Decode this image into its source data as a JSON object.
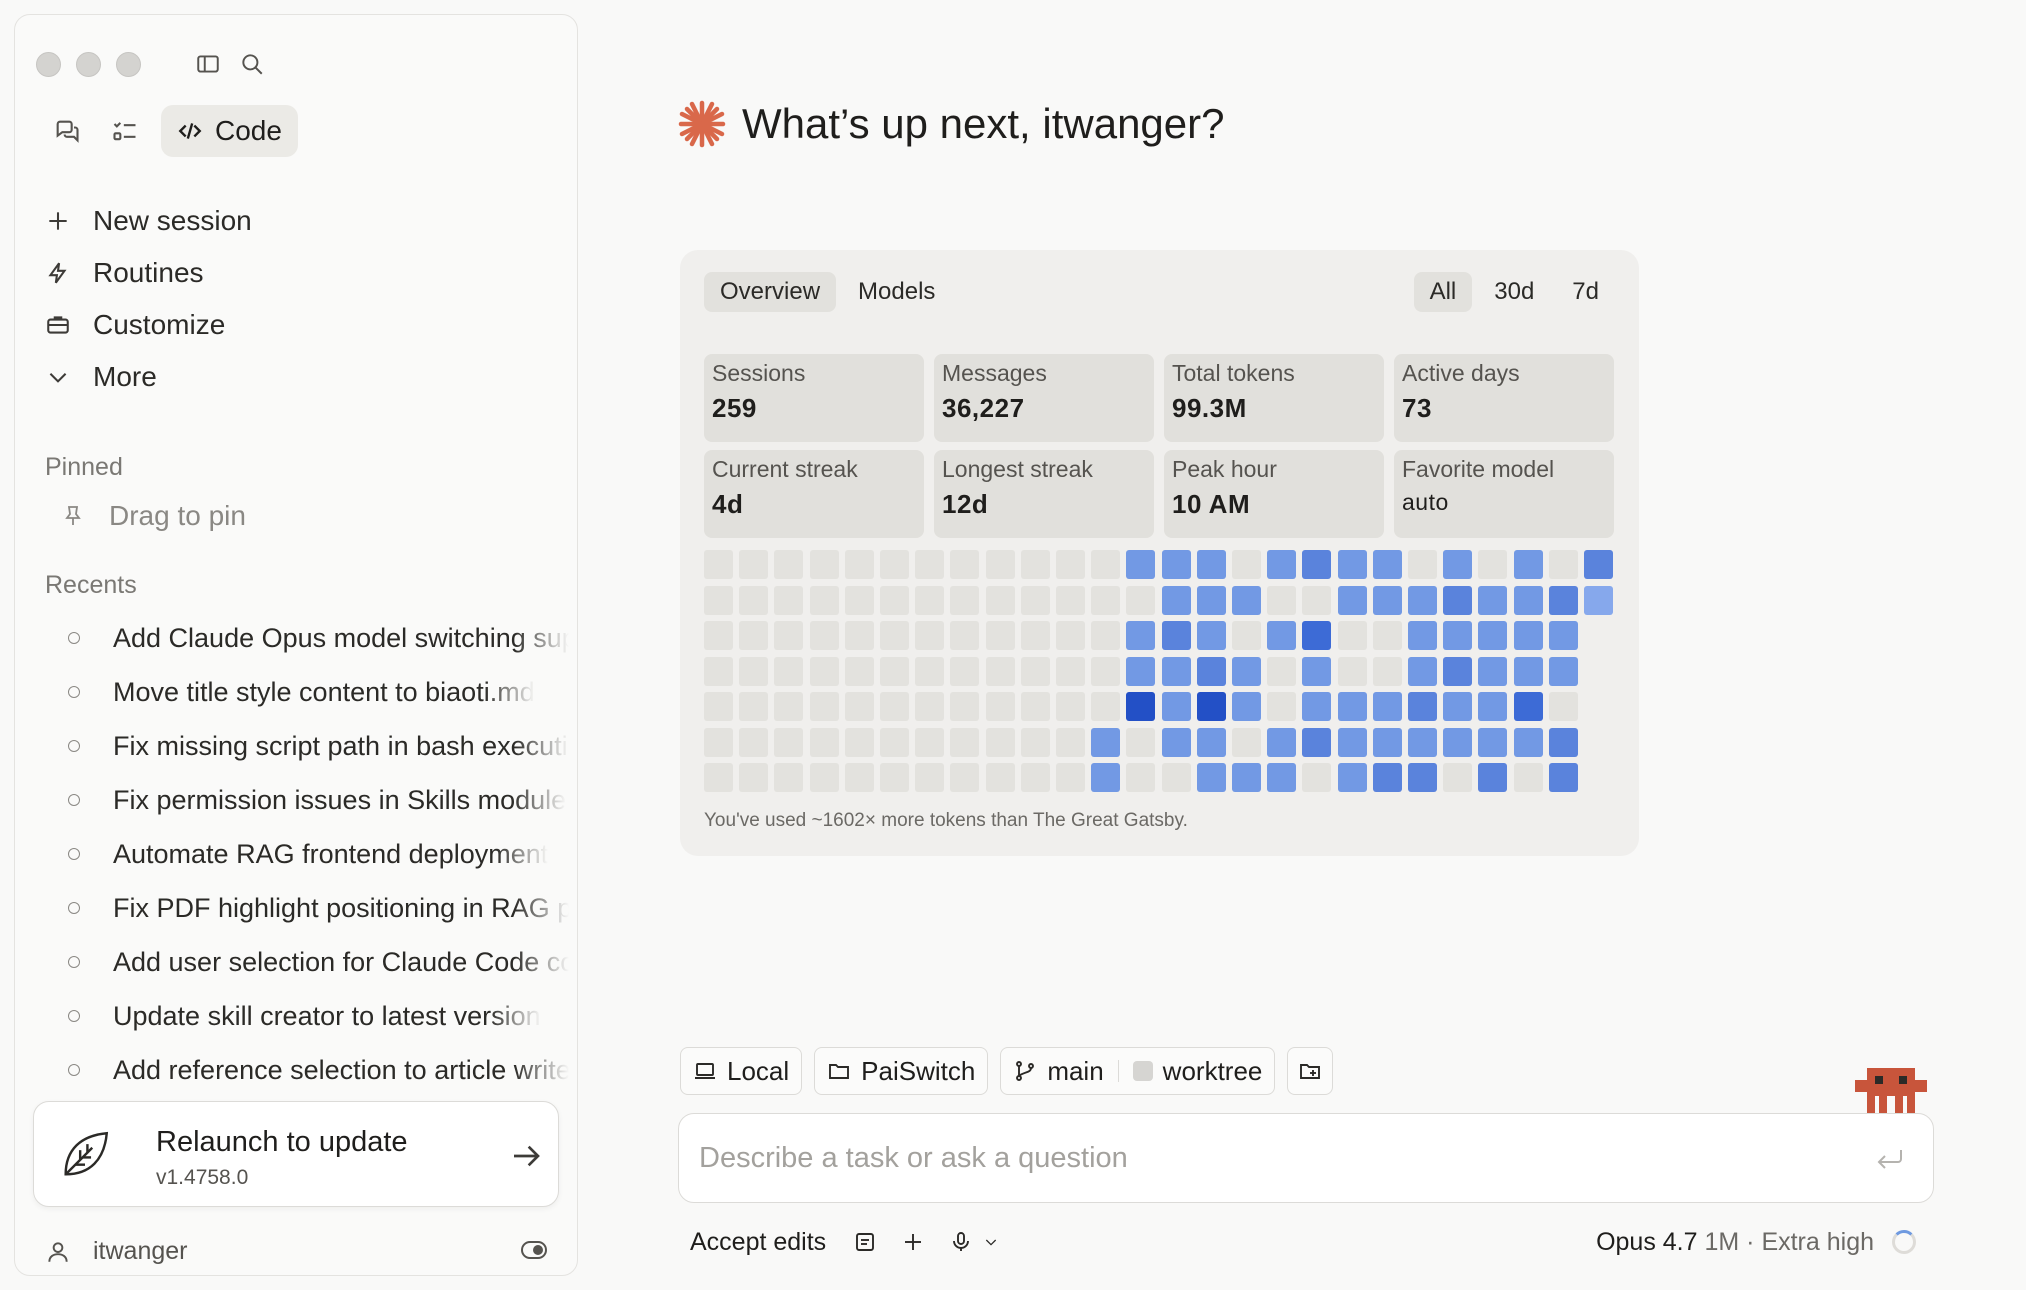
{
  "sidebar": {
    "modes": {
      "chat_icon": "chat-bubbles-icon",
      "tasks_icon": "checklist-icon",
      "code_label": "Code"
    },
    "nav": [
      {
        "label": "New session",
        "icon": "plus-icon"
      },
      {
        "label": "Routines",
        "icon": "lightning-icon"
      },
      {
        "label": "Customize",
        "icon": "briefcase-icon"
      },
      {
        "label": "More",
        "icon": "chevron-down-icon"
      }
    ],
    "pinned_label": "Pinned",
    "drag_to_pin": "Drag to pin",
    "recents_label": "Recents",
    "recents": [
      "Add Claude Opus model switching support",
      "Move title style content to biaoti.md",
      "Fix missing script path in bash execution",
      "Fix permission issues in Skills module",
      "Automate RAG frontend deployment",
      "Fix PDF highlight positioning in RAG preview",
      "Add user selection for Claude Code config",
      "Update skill creator to latest version",
      "Add reference selection to article writer"
    ],
    "update": {
      "title": "Relaunch to update",
      "version": "v1.4758.0"
    },
    "user": "itwanger"
  },
  "main": {
    "greeting": "What’s up next, itwanger?",
    "accent_color": "#d9684a",
    "stats": {
      "tabs": [
        "Overview",
        "Models"
      ],
      "ranges": [
        "All",
        "30d",
        "7d"
      ],
      "active_tab": "Overview",
      "active_range": "All",
      "cards": [
        {
          "label": "Sessions",
          "value": "259"
        },
        {
          "label": "Messages",
          "value": "36,227"
        },
        {
          "label": "Total tokens",
          "value": "99.3M"
        },
        {
          "label": "Active days",
          "value": "73"
        },
        {
          "label": "Current streak",
          "value": "4d"
        },
        {
          "label": "Longest streak",
          "value": "12d"
        },
        {
          "label": "Peak hour",
          "value": "10 AM"
        },
        {
          "label": "Favorite model",
          "value": "auto"
        }
      ],
      "heatmap_levels": [
        [
          0,
          0,
          0,
          0,
          0,
          0,
          0,
          0,
          0,
          0,
          0,
          0,
          2,
          2,
          2,
          0,
          2,
          3,
          2,
          2,
          0,
          2,
          0,
          2,
          0,
          3
        ],
        [
          0,
          0,
          0,
          0,
          0,
          0,
          0,
          0,
          0,
          0,
          0,
          0,
          0,
          2,
          2,
          2,
          0,
          0,
          2,
          2,
          2,
          3,
          2,
          2,
          3,
          1
        ],
        [
          0,
          0,
          0,
          0,
          0,
          0,
          0,
          0,
          0,
          0,
          0,
          0,
          2,
          3,
          2,
          0,
          2,
          4,
          0,
          0,
          2,
          2,
          2,
          2,
          2,
          -1
        ],
        [
          0,
          0,
          0,
          0,
          0,
          0,
          0,
          0,
          0,
          0,
          0,
          0,
          2,
          2,
          3,
          2,
          0,
          2,
          0,
          0,
          2,
          3,
          2,
          2,
          2,
          -1
        ],
        [
          0,
          0,
          0,
          0,
          0,
          0,
          0,
          0,
          0,
          0,
          0,
          0,
          5,
          2,
          5,
          2,
          0,
          2,
          2,
          2,
          3,
          2,
          2,
          4,
          0,
          -1
        ],
        [
          0,
          0,
          0,
          0,
          0,
          0,
          0,
          0,
          0,
          0,
          0,
          2,
          0,
          2,
          2,
          0,
          2,
          3,
          2,
          2,
          2,
          2,
          2,
          2,
          3,
          -1
        ],
        [
          0,
          0,
          0,
          0,
          0,
          0,
          0,
          0,
          0,
          0,
          0,
          2,
          0,
          0,
          2,
          2,
          2,
          0,
          2,
          3,
          3,
          0,
          3,
          0,
          3,
          -1
        ]
      ],
      "heatmap_colors": [
        "#e3e2de",
        "#86a8ec",
        "#7299e4",
        "#5a83dc",
        "#3d6bd6",
        "#2350c6"
      ],
      "footnote": "You've used ~1602× more tokens than The Great Gatsby."
    },
    "chips": {
      "local": "Local",
      "project": "PaiSwitch",
      "branch": "main",
      "worktree": "worktree"
    },
    "prompt": {
      "placeholder": "Describe a task or ask a question"
    },
    "bottom": {
      "accept": "Accept edits",
      "model": "Opus 4.7",
      "context": "1M",
      "effort": "Extra high"
    }
  }
}
